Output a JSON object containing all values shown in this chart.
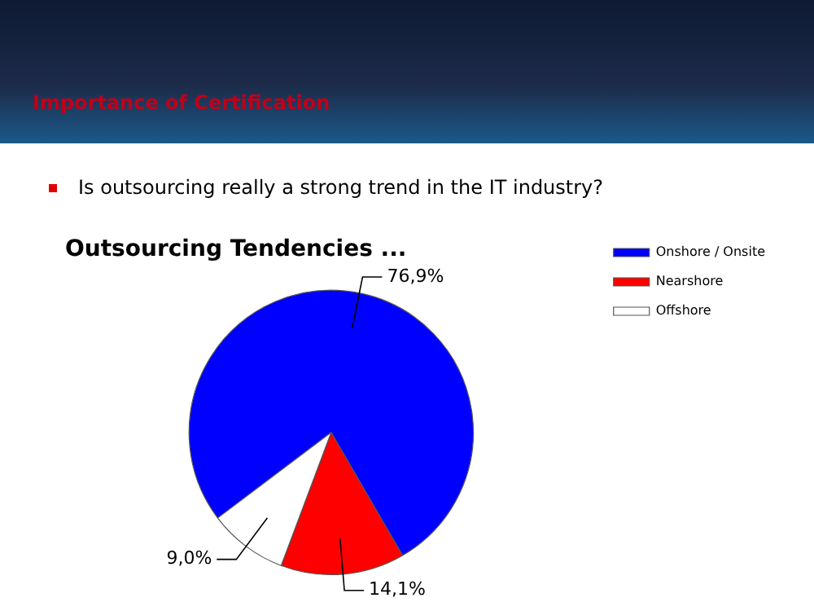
{
  "chart_data": {
    "type": "pie",
    "title": "Outsourcing Tendencies ...",
    "annotations": [
      "Importance of Certification",
      "Is outsourcing really a strong trend in the IT industry?"
    ],
    "categories": [
      "Onshore / Onsite",
      "Nearshore",
      "Offshore"
    ],
    "values": [
      76.9,
      14.1,
      9.0
    ],
    "colors": [
      "#0000ff",
      "#ff0000",
      "#ffffff"
    ],
    "value_labels": [
      "76,9%",
      "14,1%",
      "9,0%"
    ],
    "legend": "right"
  }
}
